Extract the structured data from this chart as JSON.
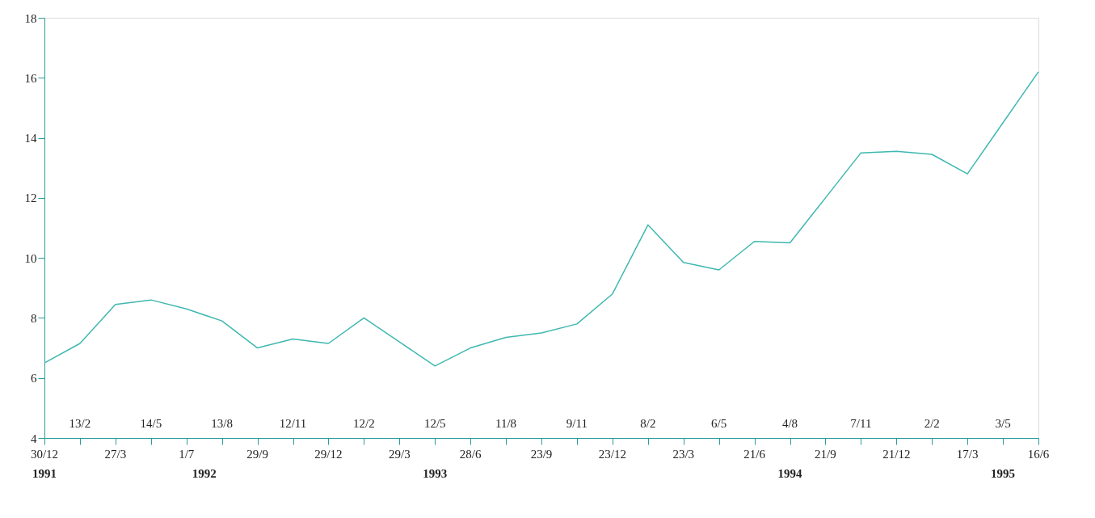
{
  "chart_data": {
    "type": "line",
    "categories": [
      "30/12",
      "13/2",
      "27/3",
      "14/5",
      "1/7",
      "13/8",
      "29/9",
      "12/11",
      "29/12",
      "12/2",
      "29/3",
      "12/5",
      "28/6",
      "11/8",
      "23/9",
      "9/11",
      "23/12",
      "8/2",
      "23/3",
      "6/5",
      "21/6",
      "4/8",
      "21/9",
      "7/11",
      "21/12",
      "2/2",
      "17/3",
      "3/5",
      "16/6"
    ],
    "series": [
      {
        "color": "#3fb8b0",
        "values": [
          6.5,
          7.15,
          8.45,
          8.6,
          8.3,
          7.9,
          7.0,
          7.3,
          7.15,
          8.0,
          7.2,
          6.4,
          7.0,
          7.35,
          7.5,
          7.8,
          8.8,
          11.1,
          9.85,
          9.6,
          10.55,
          10.5,
          12.0,
          13.5,
          13.55,
          13.45,
          12.8,
          14.5,
          16.2
        ]
      }
    ],
    "ylim": [
      4,
      18
    ],
    "yticks": [
      4,
      6,
      8,
      10,
      12,
      14,
      16,
      18
    ],
    "annotations": [
      "1991",
      "1992",
      "1993",
      "1994",
      "1995"
    ],
    "grid": false,
    "marker": "none",
    "line_style": "solid"
  }
}
